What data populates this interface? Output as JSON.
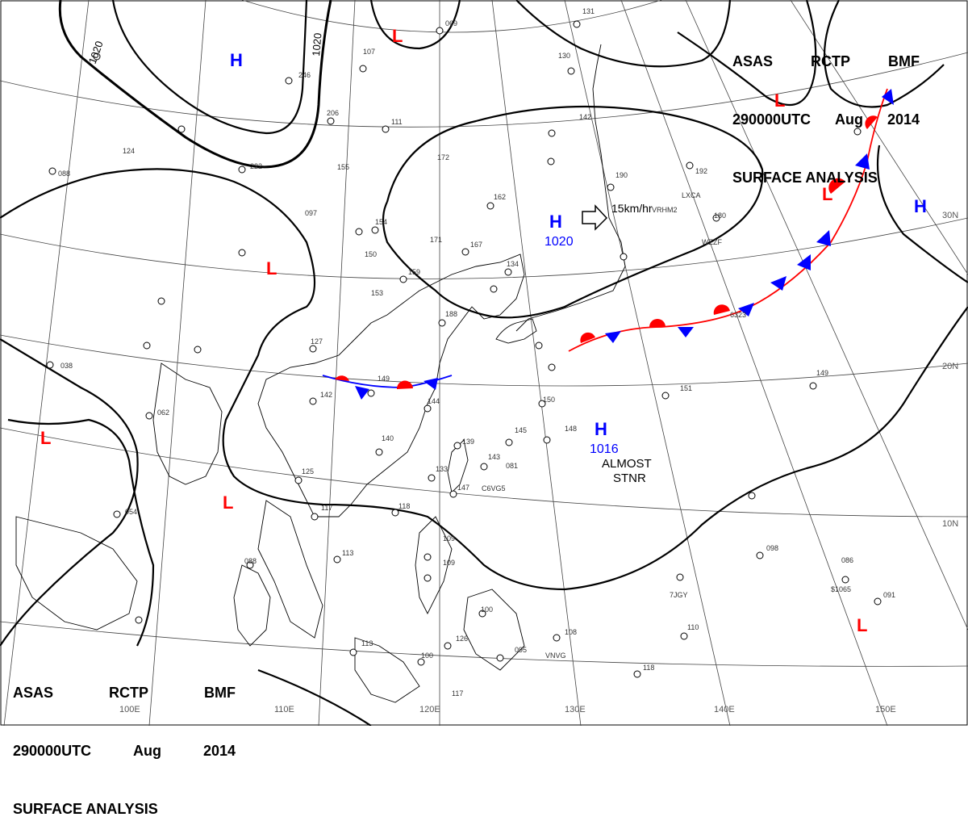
{
  "header": {
    "agency": "ASAS",
    "station": "RCTP",
    "code": "BMF",
    "valid_time": "290000UTC",
    "month": "Aug",
    "year": "2014",
    "product": "SURFACE ANALYSIS"
  },
  "pressure_centers": {
    "high_symbol": "H",
    "low_symbol": "L",
    "high_central_1": "1020",
    "high_central_2": "1016",
    "high_note_1": "ALMOST",
    "high_note_2": "STNR",
    "motion": "15km/hr"
  },
  "isobar_labels": [
    "1020",
    "1020"
  ],
  "longitude_labels": [
    "100E",
    "110E",
    "120E",
    "130E",
    "140E",
    "150E"
  ],
  "latitude_labels": [
    "30N",
    "20N",
    "10N"
  ],
  "station_values": [
    "069",
    "131",
    "130",
    "142",
    "111",
    "172",
    "162",
    "190",
    "192",
    "155",
    "097",
    "124",
    "088",
    "222",
    "246",
    "206",
    "107",
    "171",
    "167",
    "159",
    "134",
    "154",
    "150",
    "153",
    "188",
    "127",
    "142",
    "149",
    "144",
    "150",
    "140",
    "145",
    "148",
    "139",
    "143",
    "081",
    "133",
    "147",
    "125",
    "117",
    "118",
    "113",
    "088",
    "109",
    "109",
    "113",
    "100",
    "126",
    "095",
    "108",
    "118",
    "110",
    "038",
    "062",
    "054",
    "180",
    "151",
    "149",
    "098",
    "086",
    "091",
    "117",
    "100"
  ],
  "ship_ids": [
    "VRHM2",
    "LXCA",
    "WZZF",
    "6323",
    "C6VG5",
    "7JGY",
    "VNVG",
    "$1065"
  ],
  "colors": {
    "high": "#0000ff",
    "low": "#ff0000",
    "cold_front": "#0000ff",
    "warm_front": "#ff0000",
    "isobar": "#000000",
    "land": "#000000"
  }
}
